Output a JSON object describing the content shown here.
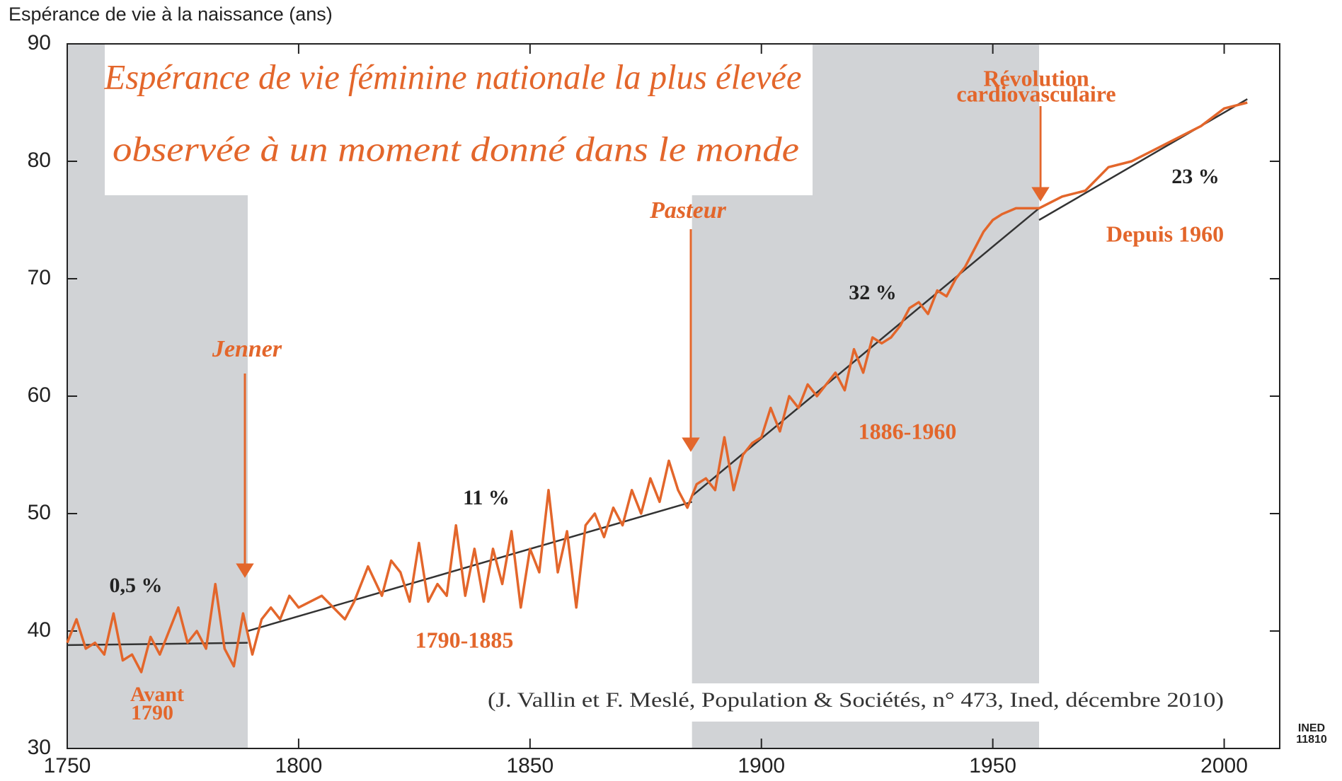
{
  "chart_data": {
    "type": "line",
    "y_axis_label": "Espérance de vie à la naissance (ans)",
    "title": [
      "Espérance de vie féminine nationale la plus élevée",
      "observée à un moment donné dans le monde"
    ],
    "xlim": [
      1750,
      2012
    ],
    "ylim": [
      30,
      90
    ],
    "xticks": [
      1750,
      1800,
      1850,
      1900,
      1950,
      2000
    ],
    "yticks": [
      30,
      40,
      50,
      60,
      70,
      80,
      90
    ],
    "periods": [
      [
        1750,
        1789
      ],
      [
        1885,
        1960
      ]
    ],
    "period_color": "#d1d3d6",
    "series": [
      {
        "color": "#e3662b",
        "x": [
          1750,
          1752,
          1754,
          1756,
          1758,
          1760,
          1762,
          1764,
          1766,
          1768,
          1770,
          1772,
          1774,
          1776,
          1778,
          1780,
          1782,
          1784,
          1786,
          1788,
          1790,
          1792,
          1794,
          1796,
          1798,
          1800,
          1805,
          1810,
          1812,
          1815,
          1818,
          1820,
          1822,
          1824,
          1826,
          1828,
          1830,
          1832,
          1834,
          1836,
          1838,
          1840,
          1842,
          1844,
          1846,
          1848,
          1850,
          1852,
          1854,
          1856,
          1858,
          1860,
          1862,
          1864,
          1866,
          1868,
          1870,
          1872,
          1874,
          1876,
          1878,
          1880,
          1882,
          1884,
          1886,
          1888,
          1890,
          1892,
          1894,
          1896,
          1898,
          1900,
          1902,
          1904,
          1906,
          1908,
          1910,
          1912,
          1914,
          1916,
          1918,
          1920,
          1922,
          1924,
          1926,
          1928,
          1930,
          1932,
          1934,
          1936,
          1938,
          1940,
          1942,
          1944,
          1946,
          1948,
          1950,
          1952,
          1955,
          1958,
          1960,
          1965,
          1970,
          1975,
          1980,
          1985,
          1990,
          1995,
          2000,
          2005
        ],
        "values": [
          39,
          41,
          38.5,
          39,
          38,
          41.5,
          37.5,
          38,
          36.5,
          39.5,
          38,
          40,
          42,
          39,
          40,
          38.5,
          44,
          38.5,
          37,
          41.5,
          38,
          41,
          42,
          41,
          43,
          42,
          43,
          41,
          42.5,
          45.5,
          43,
          46,
          45,
          42.5,
          47.5,
          42.5,
          44,
          43,
          49,
          43,
          47,
          42.5,
          47,
          44,
          48.5,
          42,
          47,
          45,
          52,
          45,
          48.5,
          42,
          49,
          50,
          48,
          50.5,
          49,
          52,
          50,
          53,
          51,
          54.5,
          52,
          50.5,
          52.5,
          53,
          52,
          56.5,
          52,
          55,
          56,
          56.5,
          59,
          57,
          60,
          59,
          61,
          60,
          61,
          62,
          60.5,
          64,
          62,
          65,
          64.5,
          65,
          66,
          67.5,
          68,
          67,
          69,
          68.5,
          70,
          71,
          72.5,
          74,
          75,
          75.5,
          76,
          76,
          76,
          77,
          77.5,
          79.5,
          80,
          81,
          82,
          83,
          84.5,
          85
        ]
      },
      {
        "color": "#333333",
        "x": [
          1750,
          1789
        ],
        "values": [
          38.8,
          39
        ]
      },
      {
        "color": "#333333",
        "x": [
          1789,
          1885
        ],
        "values": [
          40,
          51
        ]
      },
      {
        "color": "#333333",
        "x": [
          1885,
          1960
        ],
        "values": [
          51.5,
          76
        ]
      },
      {
        "color": "#333333",
        "x": [
          1960,
          2005
        ],
        "values": [
          75,
          85.3
        ]
      }
    ],
    "annotations": [
      "Jenner",
      "Pasteur",
      "Révolution",
      "cardiovasculaire",
      "0,5 %",
      "11 %",
      "32 %",
      "23 %",
      "Avant",
      "1790",
      "1790-1885",
      "1886-1960",
      "Depuis 1960",
      "(J. Vallin et F. Meslé, Population & Sociétés, n° 473, Ined, décembre 2010)",
      "INED",
      "11810"
    ]
  }
}
